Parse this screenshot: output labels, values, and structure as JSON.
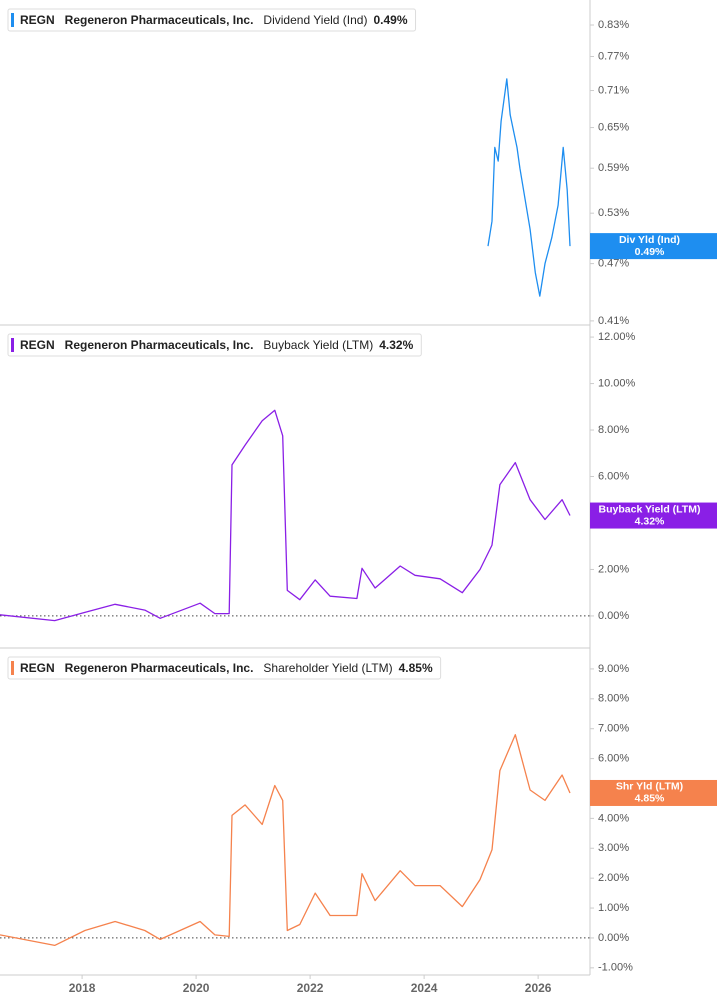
{
  "chart_data": [
    {
      "type": "line",
      "ticker": "REGN",
      "company": "Regeneron Pharmaceuticals, Inc.",
      "log_scale": true,
      "xlim": [
        2016.56,
        2026.91
      ],
      "ylim": [
        0.406,
        0.881
      ],
      "yticks": [
        {
          "value": 0.41,
          "label": "0.41%"
        },
        {
          "value": 0.47,
          "label": "0.47%"
        },
        {
          "value": 0.53,
          "label": "0.53%"
        },
        {
          "value": 0.59,
          "label": "0.59%"
        },
        {
          "value": 0.65,
          "label": "0.65%"
        },
        {
          "value": 0.71,
          "label": "0.71%"
        },
        {
          "value": 0.77,
          "label": "0.77%"
        },
        {
          "value": 0.83,
          "label": "0.83%"
        }
      ],
      "x": [
        2025.12,
        2025.19,
        2025.24,
        2025.3,
        2025.35,
        2025.45,
        2025.51,
        2025.58,
        2025.63,
        2025.68,
        2025.86,
        2025.95,
        2026.03,
        2026.12,
        2026.24,
        2026.35,
        2026.44,
        2026.51,
        2026.56
      ],
      "series": [
        {
          "name": "Dividend Yield (Ind)",
          "color": "#1e8ef0",
          "values": [
            0.49,
            0.52,
            0.62,
            0.6,
            0.66,
            0.73,
            0.67,
            0.64,
            0.62,
            0.59,
            0.51,
            0.46,
            0.435,
            0.47,
            0.5,
            0.54,
            0.62,
            0.56,
            0.49
          ]
        }
      ],
      "badge": {
        "label": "Div Yld (Ind)",
        "value": 0.49,
        "value_label": "0.49%"
      }
    },
    {
      "type": "line",
      "ticker": "REGN",
      "company": "Regeneron Pharmaceuticals, Inc.",
      "zero_line": true,
      "xlim": [
        2016.56,
        2026.91
      ],
      "ylim": [
        -1.38,
        12.52
      ],
      "yticks": [
        {
          "value": 0,
          "label": "0.00%"
        },
        {
          "value": 2,
          "label": "2.00%"
        },
        {
          "value": 4,
          "label": "4.00%"
        },
        {
          "value": 6,
          "label": "6.00%"
        },
        {
          "value": 8,
          "label": "8.00%"
        },
        {
          "value": 10,
          "label": "10.00%"
        },
        {
          "value": 12,
          "label": "12.00%"
        }
      ],
      "x": [
        2016.56,
        2017.52,
        2018.05,
        2018.58,
        2019.1,
        2019.37,
        2020.07,
        2020.33,
        2020.58,
        2020.63,
        2020.86,
        2021.16,
        2021.38,
        2021.52,
        2021.6,
        2021.82,
        2022.09,
        2022.35,
        2022.82,
        2022.91,
        2023.14,
        2023.58,
        2023.84,
        2024.28,
        2024.67,
        2024.98,
        2025.19,
        2025.33,
        2025.6,
        2025.86,
        2026.12,
        2026.42,
        2026.56
      ],
      "series": [
        {
          "name": "Buyback Yield (LTM)",
          "color": "#8a1fe6",
          "values": [
            0.05,
            -0.2,
            0.15,
            0.5,
            0.25,
            -0.1,
            0.55,
            0.1,
            0.1,
            6.5,
            7.35,
            8.4,
            8.85,
            7.75,
            1.1,
            0.7,
            1.55,
            0.85,
            0.75,
            2.05,
            1.2,
            2.15,
            1.75,
            1.6,
            1.0,
            2.0,
            3.05,
            5.65,
            6.6,
            5.0,
            4.15,
            5.0,
            4.32
          ]
        }
      ],
      "badge": {
        "label": "Buyback Yield (LTM)",
        "value": 4.32,
        "value_label": "4.32%"
      }
    },
    {
      "type": "line",
      "ticker": "REGN",
      "company": "Regeneron Pharmaceuticals, Inc.",
      "zero_line": true,
      "xlim": [
        2016.56,
        2026.91
      ],
      "ylim": [
        -1.24,
        9.7
      ],
      "xticks": [
        2018,
        2020,
        2022,
        2024,
        2026
      ],
      "yticks": [
        {
          "value": -1,
          "label": "-1.00%"
        },
        {
          "value": 0,
          "label": "0.00%"
        },
        {
          "value": 1,
          "label": "1.00%"
        },
        {
          "value": 2,
          "label": "2.00%"
        },
        {
          "value": 3,
          "label": "3.00%"
        },
        {
          "value": 4,
          "label": "4.00%"
        },
        {
          "value": 5,
          "label": "5.00%"
        },
        {
          "value": 6,
          "label": "6.00%"
        },
        {
          "value": 7,
          "label": "7.00%"
        },
        {
          "value": 8,
          "label": "8.00%"
        },
        {
          "value": 9,
          "label": "9.00%"
        }
      ],
      "x": [
        2016.56,
        2017.52,
        2018.05,
        2018.58,
        2019.1,
        2019.37,
        2020.07,
        2020.33,
        2020.58,
        2020.63,
        2020.86,
        2021.16,
        2021.38,
        2021.52,
        2021.6,
        2021.82,
        2022.09,
        2022.35,
        2022.82,
        2022.91,
        2023.14,
        2023.58,
        2023.84,
        2024.28,
        2024.67,
        2024.98,
        2025.19,
        2025.33,
        2025.6,
        2025.86,
        2026.12,
        2026.42,
        2026.56
      ],
      "series": [
        {
          "name": "Shareholder Yield (LTM)",
          "color": "#f5824d",
          "values": [
            0.1,
            -0.25,
            0.25,
            0.55,
            0.25,
            -0.05,
            0.55,
            0.1,
            0.05,
            4.1,
            4.45,
            3.8,
            5.1,
            4.6,
            0.25,
            0.45,
            1.5,
            0.75,
            0.75,
            2.15,
            1.25,
            2.25,
            1.75,
            1.75,
            1.05,
            1.95,
            2.95,
            5.6,
            6.8,
            4.95,
            4.6,
            5.45,
            4.85
          ]
        }
      ],
      "badge": {
        "label": "Shr Yld (LTM)",
        "value": 4.85,
        "value_label": "4.85%"
      }
    }
  ]
}
